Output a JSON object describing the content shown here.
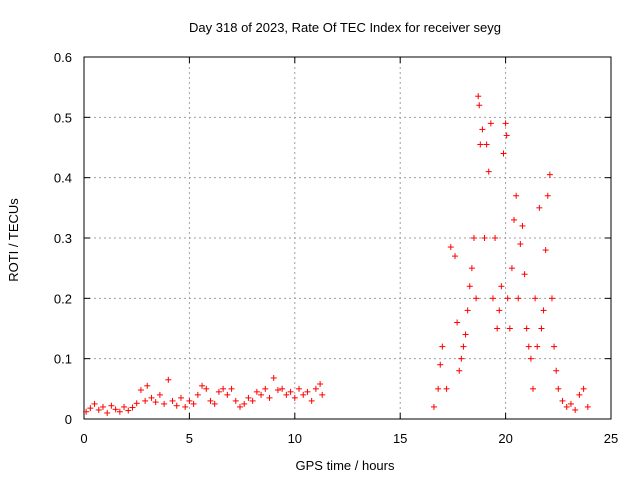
{
  "chart_data": {
    "type": "scatter",
    "title": "Day 318 of 2023, Rate Of TEC Index for receiver seyg",
    "xlabel": "GPS time / hours",
    "ylabel": "ROTI / TECUs",
    "xlim": [
      0,
      25
    ],
    "ylim": [
      0,
      0.6
    ],
    "xticks": [
      0,
      5,
      10,
      15,
      20,
      25
    ],
    "yticks": [
      0,
      0.1,
      0.2,
      0.3,
      0.4,
      0.5,
      0.6
    ],
    "xtick_labels": [
      "0",
      "5",
      "10",
      "15",
      "20",
      "25"
    ],
    "ytick_labels": [
      "0",
      "0.1",
      "0.2",
      "0.3",
      "0.4",
      "0.5",
      "0.6"
    ],
    "grid": true,
    "marker": "+",
    "color": "#ff0000",
    "series": [
      {
        "points": [
          [
            0.1,
            0.012
          ],
          [
            0.3,
            0.018
          ],
          [
            0.5,
            0.025
          ],
          [
            0.7,
            0.015
          ],
          [
            0.9,
            0.02
          ],
          [
            1.1,
            0.01
          ],
          [
            1.3,
            0.022
          ],
          [
            1.5,
            0.016
          ],
          [
            1.7,
            0.012
          ],
          [
            1.9,
            0.02
          ],
          [
            2.1,
            0.014
          ],
          [
            2.3,
            0.019
          ],
          [
            2.5,
            0.026
          ],
          [
            2.7,
            0.048
          ],
          [
            2.9,
            0.03
          ],
          [
            3.0,
            0.055
          ],
          [
            3.2,
            0.035
          ],
          [
            3.4,
            0.028
          ],
          [
            3.6,
            0.04
          ],
          [
            3.8,
            0.025
          ],
          [
            4.0,
            0.065
          ],
          [
            4.2,
            0.03
          ],
          [
            4.4,
            0.022
          ],
          [
            4.6,
            0.035
          ],
          [
            4.8,
            0.02
          ],
          [
            5.0,
            0.03
          ],
          [
            5.2,
            0.025
          ],
          [
            5.4,
            0.04
          ],
          [
            5.6,
            0.055
          ],
          [
            5.8,
            0.05
          ],
          [
            6.0,
            0.03
          ],
          [
            6.2,
            0.025
          ],
          [
            6.4,
            0.045
          ],
          [
            6.6,
            0.05
          ],
          [
            6.8,
            0.04
          ],
          [
            7.0,
            0.05
          ],
          [
            7.2,
            0.03
          ],
          [
            7.4,
            0.02
          ],
          [
            7.6,
            0.025
          ],
          [
            7.8,
            0.035
          ],
          [
            8.0,
            0.03
          ],
          [
            8.2,
            0.045
          ],
          [
            8.4,
            0.04
          ],
          [
            8.6,
            0.05
          ],
          [
            8.8,
            0.035
          ],
          [
            9.0,
            0.068
          ],
          [
            9.2,
            0.048
          ],
          [
            9.4,
            0.05
          ],
          [
            9.6,
            0.04
          ],
          [
            9.8,
            0.045
          ],
          [
            10.0,
            0.035
          ],
          [
            10.2,
            0.05
          ],
          [
            10.4,
            0.04
          ],
          [
            10.6,
            0.045
          ],
          [
            10.8,
            0.03
          ],
          [
            11.0,
            0.05
          ],
          [
            11.2,
            0.058
          ],
          [
            11.3,
            0.04
          ],
          [
            16.6,
            0.02
          ],
          [
            16.8,
            0.05
          ],
          [
            16.9,
            0.09
          ],
          [
            17.0,
            0.12
          ],
          [
            17.2,
            0.05
          ],
          [
            17.4,
            0.285
          ],
          [
            17.6,
            0.27
          ],
          [
            17.7,
            0.16
          ],
          [
            17.8,
            0.08
          ],
          [
            17.9,
            0.1
          ],
          [
            18.0,
            0.12
          ],
          [
            18.1,
            0.14
          ],
          [
            18.2,
            0.18
          ],
          [
            18.3,
            0.22
          ],
          [
            18.4,
            0.25
          ],
          [
            18.5,
            0.3
          ],
          [
            18.6,
            0.2
          ],
          [
            18.7,
            0.535
          ],
          [
            18.75,
            0.52
          ],
          [
            18.8,
            0.455
          ],
          [
            18.9,
            0.48
          ],
          [
            19.0,
            0.3
          ],
          [
            19.1,
            0.455
          ],
          [
            19.2,
            0.41
          ],
          [
            19.3,
            0.49
          ],
          [
            19.4,
            0.2
          ],
          [
            19.5,
            0.3
          ],
          [
            19.6,
            0.15
          ],
          [
            19.7,
            0.18
          ],
          [
            19.8,
            0.22
          ],
          [
            19.9,
            0.44
          ],
          [
            20.0,
            0.49
          ],
          [
            20.05,
            0.47
          ],
          [
            20.1,
            0.2
          ],
          [
            20.2,
            0.15
          ],
          [
            20.3,
            0.25
          ],
          [
            20.4,
            0.33
          ],
          [
            20.5,
            0.37
          ],
          [
            20.6,
            0.2
          ],
          [
            20.7,
            0.29
          ],
          [
            20.8,
            0.32
          ],
          [
            20.9,
            0.24
          ],
          [
            21.0,
            0.15
          ],
          [
            21.1,
            0.12
          ],
          [
            21.2,
            0.1
          ],
          [
            21.3,
            0.05
          ],
          [
            21.4,
            0.2
          ],
          [
            21.5,
            0.12
          ],
          [
            21.6,
            0.35
          ],
          [
            21.7,
            0.15
          ],
          [
            21.8,
            0.18
          ],
          [
            21.9,
            0.28
          ],
          [
            22.0,
            0.37
          ],
          [
            22.1,
            0.405
          ],
          [
            22.2,
            0.2
          ],
          [
            22.3,
            0.12
          ],
          [
            22.4,
            0.08
          ],
          [
            22.5,
            0.05
          ],
          [
            22.7,
            0.03
          ],
          [
            22.9,
            0.02
          ],
          [
            23.1,
            0.025
          ],
          [
            23.3,
            0.015
          ],
          [
            23.5,
            0.04
          ],
          [
            23.7,
            0.05
          ],
          [
            23.9,
            0.02
          ]
        ]
      }
    ]
  }
}
